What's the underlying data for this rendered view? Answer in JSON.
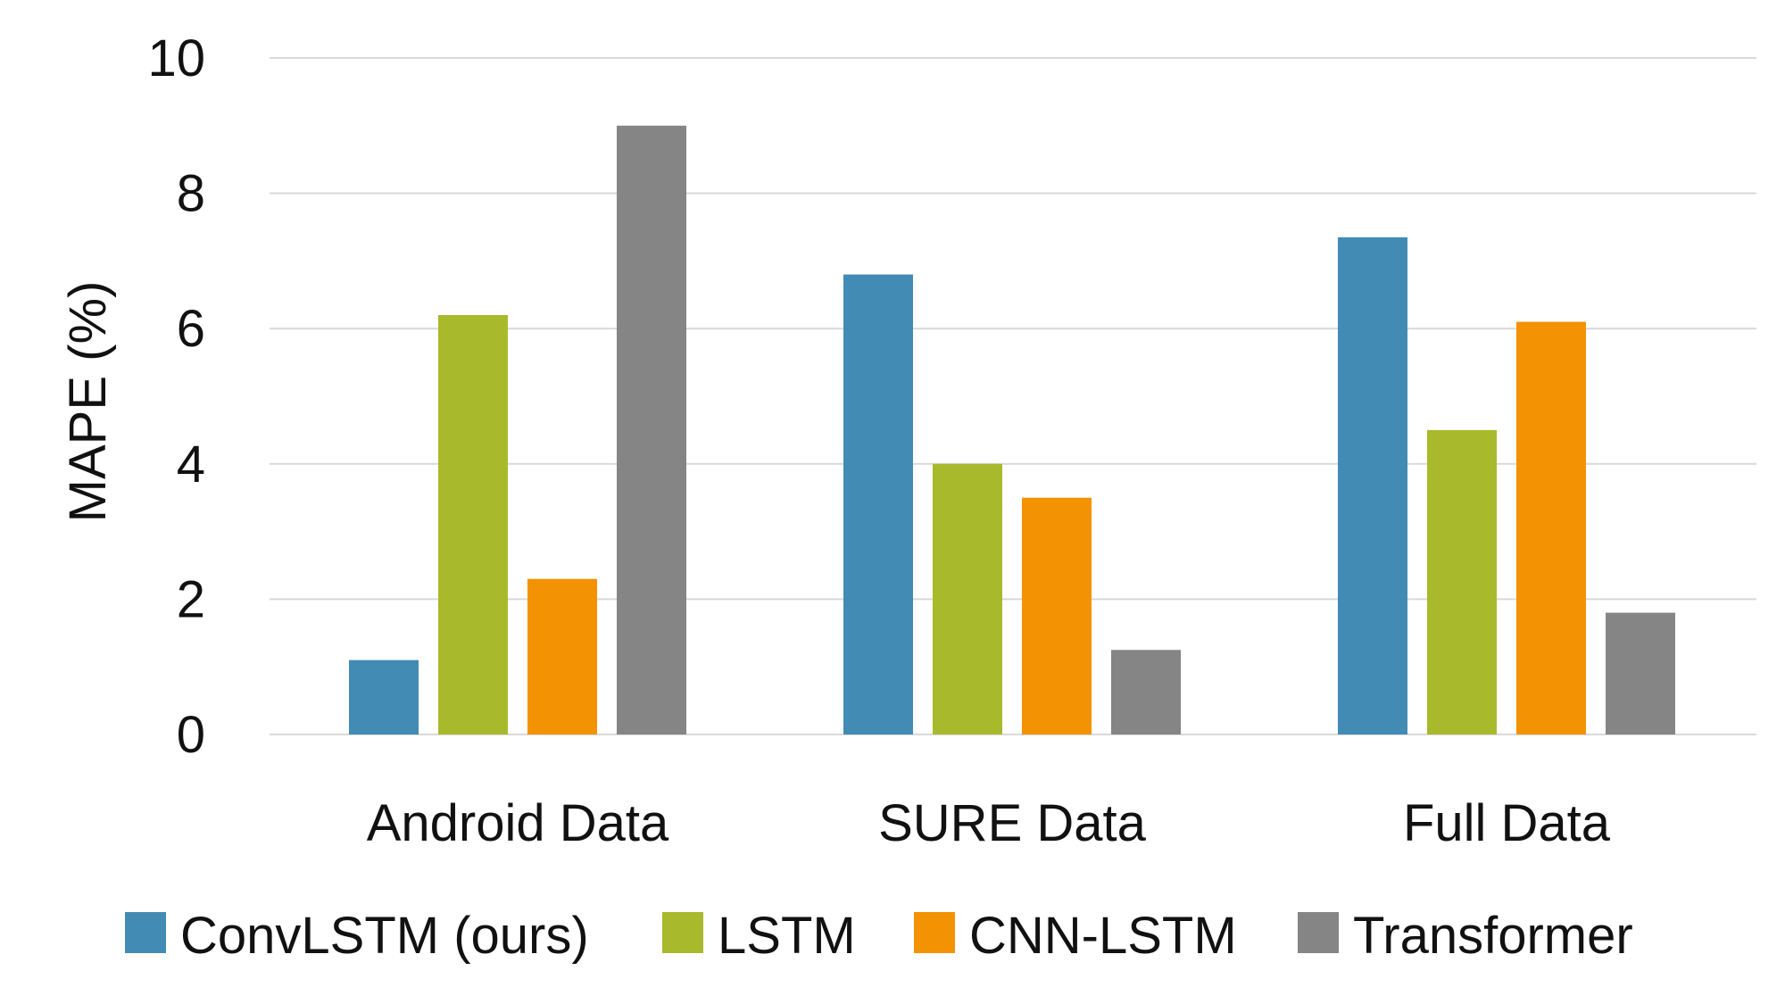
{
  "chart_data": {
    "type": "bar",
    "title": "",
    "xlabel": "",
    "ylabel": "MAPE (%)",
    "ylim": [
      0,
      10
    ],
    "yticks": [
      "0",
      "2",
      "4",
      "6",
      "8",
      "10"
    ],
    "grid": true,
    "legend_position": "bottom",
    "categories": [
      "Android Data",
      "SURE Data",
      "Full Data"
    ],
    "series": [
      {
        "name": "ConvLSTM (ours)",
        "color": "#428bb4",
        "values": [
          1.1,
          6.8,
          7.35
        ]
      },
      {
        "name": "LSTM",
        "color": "#a8b92c",
        "values": [
          6.2,
          4.0,
          4.5
        ]
      },
      {
        "name": "CNN-LSTM",
        "color": "#f39203",
        "values": [
          2.3,
          3.5,
          6.1
        ]
      },
      {
        "name": "Transformer",
        "color": "#858585",
        "values": [
          9.0,
          1.25,
          1.8
        ]
      }
    ]
  }
}
